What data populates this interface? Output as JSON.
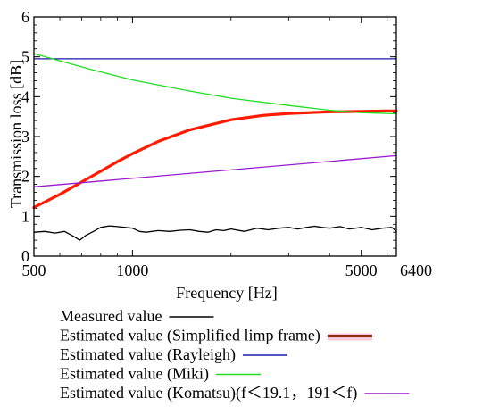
{
  "chart_data": {
    "type": "line",
    "xlabel": "Frequency [Hz]",
    "ylabel": "Transmission loss [dB]",
    "x_scale": "log",
    "xlim": [
      500,
      6400
    ],
    "ylim": [
      0,
      6
    ],
    "x_ticks": [
      500,
      1000,
      5000,
      6400
    ],
    "x_tick_labels": [
      "500",
      "1000",
      "5000",
      "6400"
    ],
    "y_ticks": [
      0,
      1,
      2,
      3,
      4,
      5,
      6
    ],
    "y_tick_labels": [
      "0",
      "1",
      "2",
      "3",
      "4",
      "5",
      "6"
    ],
    "grid": false,
    "legend_position": "below",
    "series": [
      {
        "name": "Measured value",
        "color": "#000000",
        "x": [
          500,
          540,
          580,
          620,
          660,
          690,
          720,
          760,
          800,
          850,
          900,
          950,
          1000,
          1050,
          1100,
          1200,
          1300,
          1400,
          1500,
          1600,
          1700,
          1800,
          1900,
          2000,
          2200,
          2400,
          2600,
          2800,
          3000,
          3200,
          3400,
          3600,
          3800,
          4000,
          4300,
          4600,
          5000,
          5400,
          5800,
          6200,
          6400
        ],
        "y": [
          0.6,
          0.62,
          0.58,
          0.62,
          0.5,
          0.4,
          0.52,
          0.62,
          0.72,
          0.76,
          0.74,
          0.72,
          0.7,
          0.62,
          0.6,
          0.64,
          0.62,
          0.65,
          0.66,
          0.62,
          0.6,
          0.66,
          0.64,
          0.68,
          0.62,
          0.7,
          0.66,
          0.7,
          0.72,
          0.68,
          0.72,
          0.75,
          0.72,
          0.7,
          0.74,
          0.68,
          0.72,
          0.66,
          0.7,
          0.72,
          0.62
        ]
      },
      {
        "name": "Estimated value (Simplified limp frame)",
        "color": "#ff1a00",
        "x": [
          500,
          600,
          700,
          800,
          900,
          1000,
          1200,
          1500,
          2000,
          2500,
          3000,
          4000,
          5000,
          6000,
          6400
        ],
        "y": [
          1.22,
          1.55,
          1.86,
          2.13,
          2.37,
          2.57,
          2.88,
          3.17,
          3.42,
          3.53,
          3.58,
          3.62,
          3.63,
          3.64,
          3.64
        ]
      },
      {
        "name": "Estimated value (Rayleigh)",
        "color": "#1a1aa8",
        "x": [
          500,
          6400
        ],
        "y": [
          4.95,
          4.95
        ]
      },
      {
        "name": "Estimated value (Miki)",
        "color": "#22dd22",
        "x": [
          500,
          750,
          1000,
          1500,
          2000,
          3000,
          4000,
          5000,
          6400
        ],
        "y": [
          5.08,
          4.68,
          4.42,
          4.14,
          3.96,
          3.78,
          3.66,
          3.6,
          3.57
        ]
      },
      {
        "name": "Estimated value (Komatsu)(f＜19.1，191＜f)",
        "color": "#9a1ad0",
        "x": [
          500,
          6400
        ],
        "y": [
          1.74,
          2.52
        ]
      }
    ],
    "legend": [
      {
        "label": "Measured value",
        "color": "#000000",
        "width": 1.5
      },
      {
        "label": "Estimated value (Simplified limp frame)",
        "color": "#8a2b10",
        "width": 3,
        "halo": "#f7c9dd"
      },
      {
        "label": "Estimated value (Rayleigh)",
        "color": "#1a1aa8",
        "width": 1.5
      },
      {
        "label": "Estimated value (Miki)",
        "color": "#22dd22",
        "width": 1.5
      },
      {
        "label": "Estimated value (Komatsu)(f＜19.1，191＜f)",
        "color": "#9a1ad0",
        "width": 1.5
      }
    ]
  }
}
